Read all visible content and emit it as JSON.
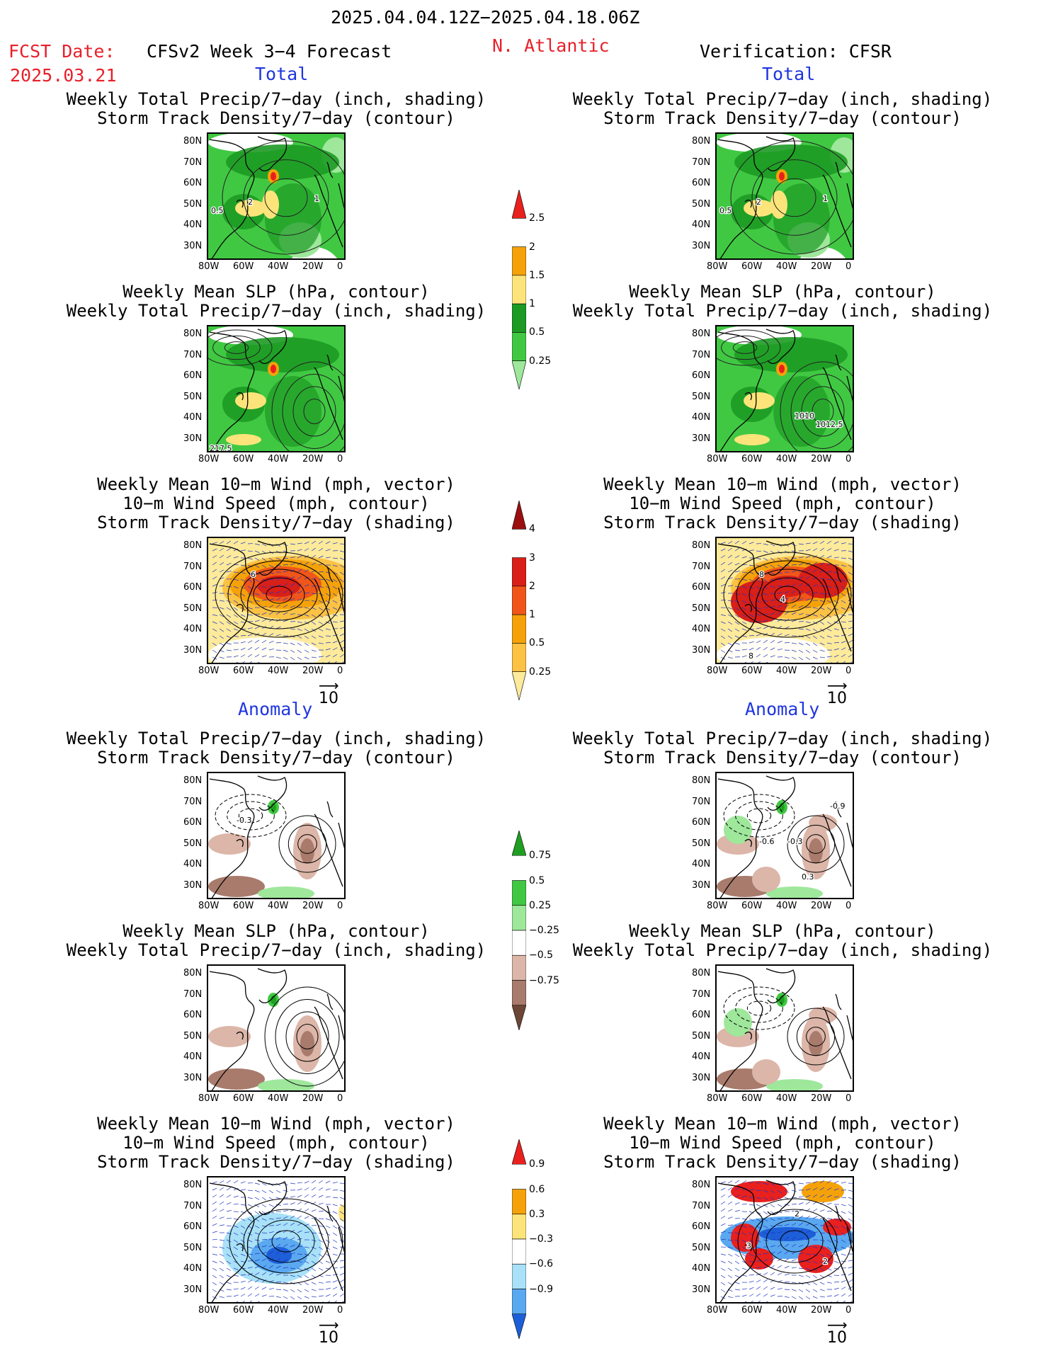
{
  "header": {
    "date_range": "2025.04.04.12Z−2025.04.18.06Z",
    "fcst_label": "FCST Date:",
    "fcst_date": "2025.03.21",
    "model": "CFSv2 Week 3−4 Forecast",
    "region": "N. Atlantic",
    "verification": "Verification: CFSR"
  },
  "sections": {
    "total_left": "Total",
    "total_right": "Total",
    "anomaly_left": "Anomaly",
    "anomaly_right": "Anomaly"
  },
  "titles": {
    "precip_storm": [
      "Weekly Total Precip/7−day (inch, shading)",
      "Storm Track Density/7−day (contour)"
    ],
    "slp_precip": [
      "Weekly Mean SLP (hPa, contour)",
      "Weekly Total Precip/7−day (inch, shading)"
    ],
    "wind": [
      "Weekly Mean 10−m Wind (mph, vector)",
      "10−m Wind Speed (mph, contour)",
      "Storm Track Density/7−day (shading)"
    ]
  },
  "axes": {
    "lat": [
      "80N",
      "70N",
      "60N",
      "50N",
      "40N",
      "30N"
    ],
    "lon": [
      "80W",
      "60W",
      "40W",
      "20W",
      "0"
    ]
  },
  "vector_ref": "10",
  "contour_labels": {
    "p1l": [
      "2",
      "1",
      "0.5"
    ],
    "p1r": [
      "2",
      "1",
      "0.5"
    ],
    "p2l": [
      "217.5"
    ],
    "p2r": [
      "1010",
      "1012.5"
    ],
    "p3l": [
      "6"
    ],
    "p3r": [
      "8",
      "4",
      "8"
    ],
    "p4l": [
      "-0.3"
    ],
    "p4r": [
      "0.3",
      "-0.3",
      "-0.6",
      "-0.9"
    ],
    "p6r": [
      "2",
      "3",
      "2"
    ]
  },
  "colorbars": [
    {
      "labels": [
        "2.5",
        "2",
        "1.5",
        "1",
        "0.5",
        "0.25"
      ],
      "colors": [
        "#e8201e",
        "#f5a20a",
        "#fde47a",
        "#1d9a24",
        "#41c843",
        "#9ee79b"
      ]
    },
    {
      "labels": [
        "4",
        "3",
        "2",
        "1",
        "0.5",
        "0.25"
      ],
      "colors": [
        "#9b0f0f",
        "#d81f18",
        "#f0561a",
        "#f5a20a",
        "#fbc244",
        "#fdea9a"
      ]
    },
    {
      "labels": [
        "0.75",
        "0.5",
        "0.25",
        "−0.25",
        "−0.5",
        "−0.75"
      ],
      "colors": [
        "#1f9e22",
        "#41c843",
        "#9ee79b",
        "#ffffff",
        "#dcb6a8",
        "#a87b6c",
        "#6e4635"
      ]
    },
    {
      "labels": [
        "0.9",
        "0.6",
        "0.3",
        "−0.3",
        "−0.6",
        "−0.9"
      ],
      "colors": [
        "#e8201e",
        "#f5a20a",
        "#fde47a",
        "#ffffff",
        "#a8e1f8",
        "#5aa8f0",
        "#1d5fd8"
      ]
    }
  ]
}
